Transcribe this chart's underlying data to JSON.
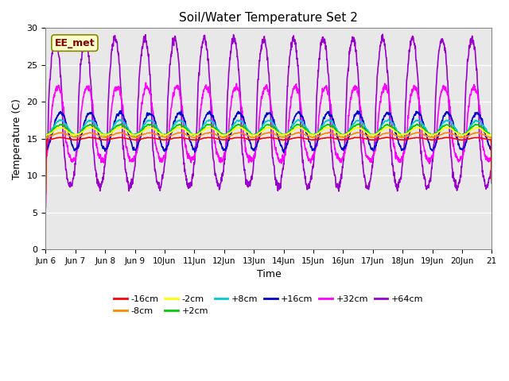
{
  "title": "Soil/Water Temperature Set 2",
  "xlabel": "Time",
  "ylabel": "Temperature (C)",
  "ylim": [
    0,
    30
  ],
  "yticks": [
    0,
    5,
    10,
    15,
    20,
    25,
    30
  ],
  "annotation_text": "EE_met",
  "annotation_color": "#800000",
  "annotation_bg": "#ffffcc",
  "bg_color": "#e8e8e8",
  "series_order": [
    "-16cm",
    "-8cm",
    "-2cm",
    "+2cm",
    "+8cm",
    "+16cm",
    "+32cm",
    "+64cm"
  ],
  "series": {
    "-16cm": {
      "color": "#ff0000",
      "lw": 1.2
    },
    "-8cm": {
      "color": "#ff8800",
      "lw": 1.2
    },
    "-2cm": {
      "color": "#ffff00",
      "lw": 1.2
    },
    "+2cm": {
      "color": "#00cc00",
      "lw": 1.2
    },
    "+8cm": {
      "color": "#00cccc",
      "lw": 1.2
    },
    "+16cm": {
      "color": "#0000cc",
      "lw": 1.2
    },
    "+32cm": {
      "color": "#ff00ff",
      "lw": 1.2
    },
    "+64cm": {
      "color": "#9900cc",
      "lw": 1.2
    }
  },
  "n_days": 15,
  "ppd": 144,
  "seed": 42
}
